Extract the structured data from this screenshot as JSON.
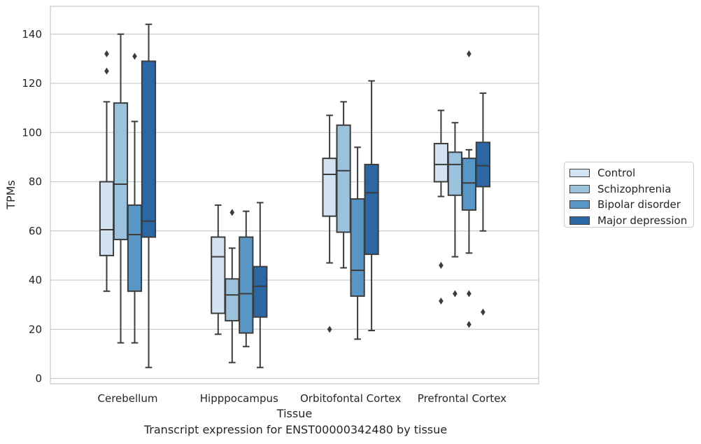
{
  "chart_data": {
    "type": "box",
    "caption": "Transcript expression for ENST00000342480 by tissue",
    "xlabel": "Tissue",
    "ylabel": "TPMs",
    "ylim": [
      -2,
      151
    ],
    "yticks": [
      0,
      20,
      40,
      60,
      80,
      100,
      120,
      140
    ],
    "grid": "horizontal",
    "legend_position": "right",
    "categories": [
      "Cerebellum",
      "Hipppocampus",
      "Orbitofontal Cortex",
      "Prefrontal Cortex"
    ],
    "series": [
      {
        "name": "Control",
        "color": "#d3e3f2",
        "boxes": [
          {
            "whislo": 35.5,
            "q1": 50,
            "med": 60.5,
            "q3": 80,
            "whishi": 112.5,
            "fliers": [
              125,
              132
            ]
          },
          {
            "whislo": 18,
            "q1": 26.5,
            "med": 49.5,
            "q3": 57.5,
            "whishi": 70.5,
            "fliers": []
          },
          {
            "whislo": 47,
            "q1": 66,
            "med": 83,
            "q3": 89.5,
            "whishi": 107,
            "fliers": [
              20
            ]
          },
          {
            "whislo": 74,
            "q1": 80,
            "med": 87,
            "q3": 95.5,
            "whishi": 109,
            "fliers": [
              31.5,
              46
            ]
          }
        ]
      },
      {
        "name": "Schizophrenia",
        "color": "#9ac2dd",
        "boxes": [
          {
            "whislo": 14.5,
            "q1": 56.5,
            "med": 79,
            "q3": 112,
            "whishi": 140,
            "fliers": []
          },
          {
            "whislo": 6.5,
            "q1": 23.5,
            "med": 34,
            "q3": 40.5,
            "whishi": 53,
            "fliers": [
              67.5
            ]
          },
          {
            "whislo": 45,
            "q1": 59.5,
            "med": 84.5,
            "q3": 103,
            "whishi": 112.5,
            "fliers": []
          },
          {
            "whislo": 49.5,
            "q1": 74.5,
            "med": 87,
            "q3": 92,
            "whishi": 104,
            "fliers": [
              34.5
            ]
          }
        ]
      },
      {
        "name": "Bipolar disorder",
        "color": "#5896c5",
        "boxes": [
          {
            "whislo": 14.5,
            "q1": 35.5,
            "med": 58.5,
            "q3": 70.5,
            "whishi": 104.5,
            "fliers": [
              131
            ]
          },
          {
            "whislo": 13,
            "q1": 18.5,
            "med": 34.5,
            "q3": 57.5,
            "whishi": 68,
            "fliers": []
          },
          {
            "whislo": 16,
            "q1": 33.5,
            "med": 44,
            "q3": 73,
            "whishi": 94,
            "fliers": []
          },
          {
            "whislo": 51,
            "q1": 68.5,
            "med": 79.5,
            "q3": 89.5,
            "whishi": 93,
            "fliers": [
              22,
              34.5,
              132
            ]
          }
        ]
      },
      {
        "name": "Major depression",
        "color": "#2b67a5",
        "boxes": [
          {
            "whislo": 4.5,
            "q1": 57.5,
            "med": 64,
            "q3": 129,
            "whishi": 144,
            "fliers": []
          },
          {
            "whislo": 4.5,
            "q1": 25,
            "med": 37.5,
            "q3": 45.5,
            "whishi": 71.5,
            "fliers": []
          },
          {
            "whislo": 19.5,
            "q1": 50.5,
            "med": 75.5,
            "q3": 87,
            "whishi": 121,
            "fliers": []
          },
          {
            "whislo": 60,
            "q1": 78,
            "med": 86.5,
            "q3": 96,
            "whishi": 116,
            "fliers": [
              27
            ]
          }
        ]
      }
    ]
  }
}
